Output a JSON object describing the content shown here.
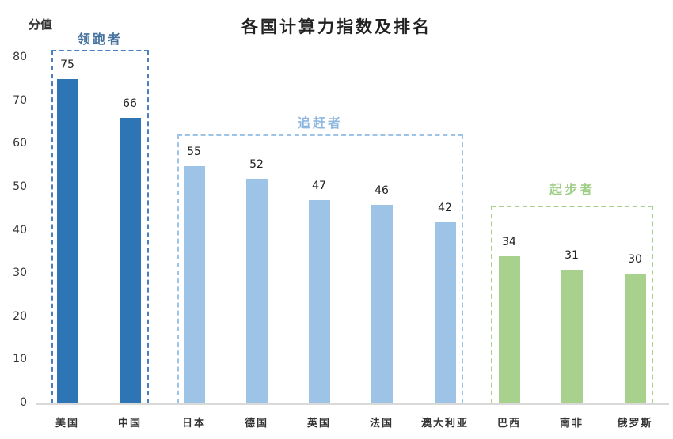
{
  "chart_data": {
    "type": "bar",
    "title": "各国计算力指数及排名",
    "xlabel": "",
    "ylabel": "分值",
    "ylim": [
      0,
      80
    ],
    "yticks": [
      0,
      10,
      20,
      30,
      40,
      50,
      60,
      70,
      80
    ],
    "grid": false,
    "categories": [
      "美国",
      "中国",
      "日本",
      "德国",
      "英国",
      "法国",
      "澳大利亚",
      "巴西",
      "南非",
      "俄罗斯"
    ],
    "values": [
      75,
      66,
      55,
      52,
      47,
      46,
      42,
      34,
      31,
      30
    ],
    "groups": [
      {
        "name": "领跑者",
        "members": [
          "美国",
          "中国"
        ],
        "color": "#2e75b6",
        "label_color": "#44719e"
      },
      {
        "name": "追赶者",
        "members": [
          "日本",
          "德国",
          "英国",
          "法国",
          "澳大利亚"
        ],
        "color": "#9dc3e6",
        "label_color": "#8fb8e0"
      },
      {
        "name": "起步者",
        "members": [
          "巴西",
          "南非",
          "俄罗斯"
        ],
        "color": "#a9d18e",
        "label_color": "#9fcf86"
      }
    ],
    "data_labels": true
  },
  "colors": {
    "leader_bar": "#2e75b6",
    "leader_box": "#4a7fc1",
    "chaser_bar": "#9dc3e6",
    "chaser_box": "#9dc3e6",
    "starter_bar": "#a9d18e",
    "starter_box": "#a9d18e",
    "axis": "#d9d9d9"
  }
}
